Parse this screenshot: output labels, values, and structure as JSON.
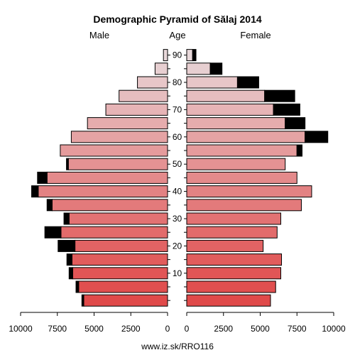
{
  "chart_data": {
    "type": "bar",
    "subtype": "population-pyramid",
    "title": "Demographic Pyramid of Sălaj 2014",
    "left_label": "Male",
    "center_label": "Age",
    "right_label": "Female",
    "footer": "www.iz.sk/RRO116",
    "xlim": [
      0,
      10000
    ],
    "x_ticks_left": [
      "10000",
      "7500",
      "5000",
      "2500",
      "0"
    ],
    "x_ticks_right": [
      "0",
      "2500",
      "5000",
      "7500",
      "10000"
    ],
    "age_ticks": [
      "10",
      "20",
      "30",
      "40",
      "50",
      "60",
      "70",
      "80",
      "90"
    ],
    "age_groups": [
      "0-4",
      "5-9",
      "10-14",
      "15-19",
      "20-24",
      "25-29",
      "30-34",
      "35-39",
      "40-44",
      "45-49",
      "50-54",
      "55-59",
      "60-64",
      "65-69",
      "70-74",
      "75-79",
      "80-84",
      "85-89",
      "90+"
    ],
    "male": [
      5700,
      6050,
      6450,
      6500,
      6300,
      7250,
      6700,
      7850,
      8800,
      8200,
      6750,
      7300,
      6550,
      5450,
      4200,
      3300,
      2050,
      850,
      280
    ],
    "male_excess": [
      130,
      180,
      250,
      350,
      1150,
      1100,
      350,
      350,
      450,
      650,
      130,
      0,
      0,
      0,
      0,
      0,
      0,
      0,
      0
    ],
    "female": [
      5700,
      6050,
      6400,
      6450,
      5200,
      6150,
      6400,
      7800,
      8500,
      7500,
      6700,
      7500,
      8050,
      6700,
      5900,
      5300,
      3450,
      1600,
      400
    ],
    "female_excess": [
      0,
      0,
      0,
      0,
      0,
      0,
      0,
      0,
      0,
      0,
      0,
      350,
      1550,
      1350,
      1800,
      2050,
      1450,
      800,
      230
    ],
    "colors": {
      "bar_young": "#e04a4a",
      "bar_old": "#e8d8da",
      "excess": "#000000",
      "outline": "#000000"
    }
  }
}
